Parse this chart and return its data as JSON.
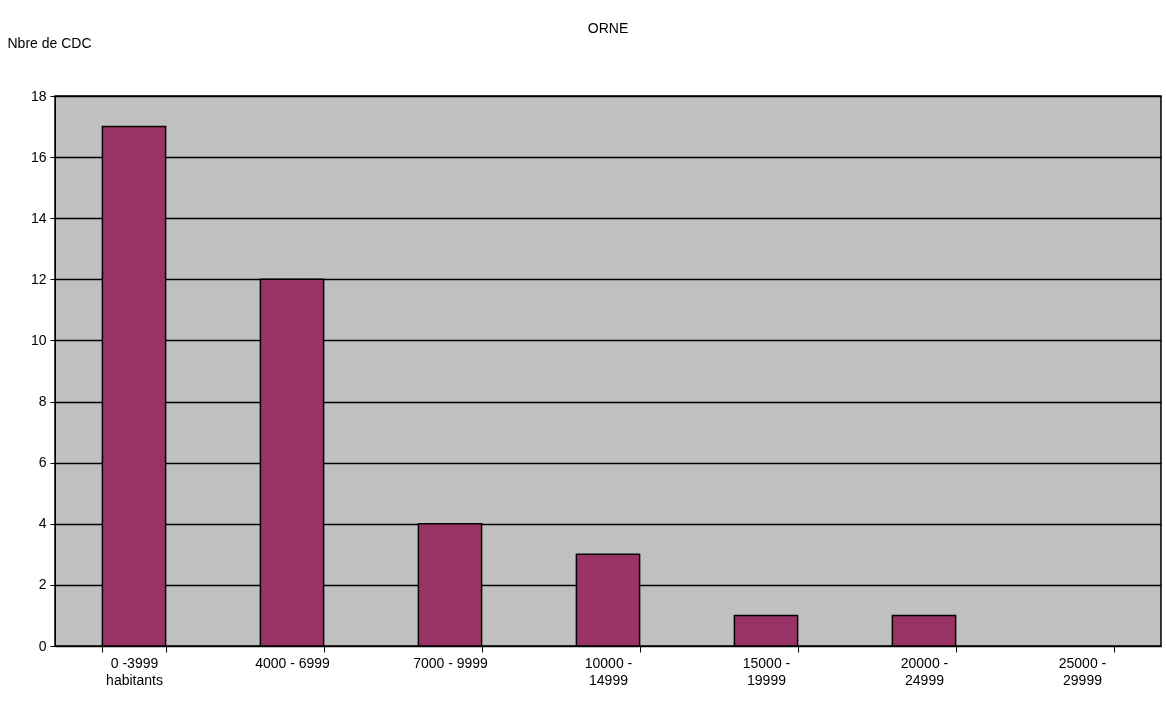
{
  "chart_data": {
    "type": "bar",
    "title": "ORNE",
    "ylabel": "Nbre de CDC",
    "categories": [
      "0 -3999\nhabitants",
      "4000 - 6999",
      "7000 - 9999",
      "10000 -\n14999",
      "15000 -\n19999",
      "20000 -\n24999",
      "25000 -\n29999"
    ],
    "values": [
      17,
      12,
      4,
      3,
      1,
      1,
      0
    ],
    "color": "#993366",
    "ylim": [
      0,
      18
    ],
    "yticks": [
      0,
      2,
      4,
      6,
      8,
      10,
      12,
      14,
      16,
      18
    ],
    "grid": true
  }
}
